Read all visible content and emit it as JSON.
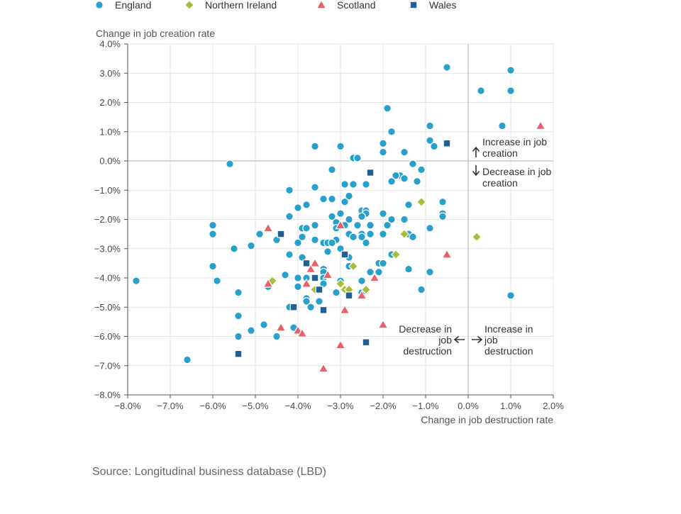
{
  "chart_data": {
    "type": "scatter",
    "xlabel": "Change in job destruction rate",
    "ylabel": "Change in job creation rate",
    "xlim": [
      -8,
      2
    ],
    "ylim": [
      -8,
      4
    ],
    "x_ticks": [
      -8,
      -7,
      -6,
      -5,
      -4,
      -3,
      -2,
      -1,
      0,
      1,
      2
    ],
    "y_ticks": [
      -8,
      -7,
      -6,
      -5,
      -4,
      -3,
      -2,
      -1,
      0,
      1,
      2,
      3,
      4
    ],
    "tick_format": "percent_1dp",
    "grid": true,
    "legend_position": "top",
    "annotations": {
      "increase_creation": [
        "Increase in job",
        "creation"
      ],
      "decrease_creation": [
        "Decrease in job",
        "creation"
      ],
      "decrease_destruction": [
        "Decrease in",
        "job",
        "destruction"
      ],
      "increase_destruction": [
        "Increase in",
        "job",
        "destruction"
      ]
    },
    "source": "Source: Longitudinal business database (LBD)",
    "series": [
      {
        "name": "England",
        "marker": "circle",
        "color": "#27a0cc",
        "points": [
          [
            -0.5,
            3.2
          ],
          [
            1.0,
            3.1
          ],
          [
            0.3,
            2.4
          ],
          [
            1.0,
            2.4
          ],
          [
            -1.9,
            1.8
          ],
          [
            0.8,
            1.2
          ],
          [
            -0.9,
            1.2
          ],
          [
            -1.8,
            1.0
          ],
          [
            -0.9,
            0.7
          ],
          [
            -0.8,
            0.5
          ],
          [
            -2.0,
            0.6
          ],
          [
            -3.6,
            0.5
          ],
          [
            -3.0,
            0.5
          ],
          [
            -1.5,
            0.3
          ],
          [
            -2.0,
            0.3
          ],
          [
            -2.7,
            0.1
          ],
          [
            -2.6,
            0.1
          ],
          [
            -5.6,
            -0.1
          ],
          [
            -1.3,
            -0.1
          ],
          [
            -3.2,
            -0.3
          ],
          [
            -1.1,
            -0.3
          ],
          [
            -1.6,
            -0.5
          ],
          [
            -1.7,
            -0.5
          ],
          [
            -1.5,
            -0.6
          ],
          [
            -1.8,
            -0.7
          ],
          [
            -1.2,
            -0.7
          ],
          [
            -2.9,
            -0.8
          ],
          [
            -2.7,
            -0.8
          ],
          [
            -2.4,
            -0.8
          ],
          [
            -3.6,
            -0.9
          ],
          [
            -4.2,
            -1.0
          ],
          [
            -2.8,
            -1.2
          ],
          [
            -3.4,
            -1.3
          ],
          [
            -3.2,
            -1.3
          ],
          [
            -2.9,
            -1.4
          ],
          [
            -3.8,
            -1.5
          ],
          [
            -1.4,
            -1.5
          ],
          [
            -4.0,
            -1.6
          ],
          [
            -0.6,
            -1.4
          ],
          [
            -2.5,
            -1.7
          ],
          [
            -2.4,
            -1.7
          ],
          [
            -2.4,
            -1.8
          ],
          [
            -2.0,
            -1.8
          ],
          [
            -3.0,
            -1.8
          ],
          [
            -0.6,
            -1.8
          ],
          [
            -4.2,
            -1.9
          ],
          [
            -3.2,
            -1.9
          ],
          [
            -2.5,
            -1.9
          ],
          [
            -0.6,
            -1.9
          ],
          [
            -2.8,
            -2.0
          ],
          [
            -1.8,
            -2.0
          ],
          [
            -1.5,
            -2.0
          ],
          [
            -3.1,
            -2.1
          ],
          [
            -2.9,
            -2.2
          ],
          [
            -6.0,
            -2.2
          ],
          [
            -3.6,
            -2.2
          ],
          [
            -2.6,
            -2.2
          ],
          [
            -2.3,
            -2.2
          ],
          [
            -1.9,
            -2.2
          ],
          [
            -3.9,
            -2.3
          ],
          [
            -3.8,
            -2.3
          ],
          [
            -3.1,
            -2.3
          ],
          [
            -0.9,
            -2.3
          ],
          [
            -6.0,
            -2.5
          ],
          [
            -4.9,
            -2.5
          ],
          [
            -2.8,
            -2.5
          ],
          [
            -2.5,
            -2.5
          ],
          [
            -2.3,
            -2.5
          ],
          [
            -2.0,
            -2.5
          ],
          [
            -1.4,
            -2.5
          ],
          [
            -3.9,
            -2.6
          ],
          [
            -2.7,
            -2.6
          ],
          [
            -2.5,
            -2.6
          ],
          [
            -1.3,
            -2.6
          ],
          [
            -4.5,
            -2.7
          ],
          [
            -3.6,
            -2.7
          ],
          [
            -3.1,
            -2.7
          ],
          [
            -4.0,
            -2.8
          ],
          [
            -3.4,
            -2.8
          ],
          [
            -3.3,
            -2.8
          ],
          [
            -3.2,
            -2.8
          ],
          [
            -2.4,
            -2.8
          ],
          [
            -5.1,
            -2.9
          ],
          [
            -5.5,
            -3.0
          ],
          [
            -3.0,
            -3.0
          ],
          [
            -3.3,
            -3.1
          ],
          [
            -4.2,
            -3.2
          ],
          [
            -1.8,
            -3.2
          ],
          [
            -3.9,
            -3.3
          ],
          [
            -2.8,
            -3.3
          ],
          [
            -2.1,
            -3.5
          ],
          [
            -2.0,
            -3.5
          ],
          [
            -2.8,
            -3.6
          ],
          [
            -1.4,
            -3.7
          ],
          [
            -3.4,
            -3.7
          ],
          [
            -6.0,
            -3.6
          ],
          [
            -2.3,
            -3.8
          ],
          [
            -2.1,
            -3.8
          ],
          [
            -0.9,
            -3.8
          ],
          [
            -3.4,
            -3.8
          ],
          [
            -4.3,
            -3.9
          ],
          [
            -7.8,
            -4.1
          ],
          [
            -5.9,
            -4.1
          ],
          [
            -4.0,
            -4.0
          ],
          [
            -3.8,
            -4.0
          ],
          [
            -3.4,
            -4.0
          ],
          [
            -3.0,
            -4.1
          ],
          [
            -2.5,
            -4.1
          ],
          [
            -4.7,
            -4.3
          ],
          [
            -4.0,
            -4.3
          ],
          [
            -3.4,
            -4.2
          ],
          [
            -1.1,
            -4.4
          ],
          [
            -5.4,
            -4.5
          ],
          [
            -3.1,
            -4.5
          ],
          [
            -2.5,
            -4.5
          ],
          [
            1.0,
            -4.6
          ],
          [
            -3.8,
            -4.7
          ],
          [
            -3.8,
            -4.8
          ],
          [
            -3.5,
            -4.8
          ],
          [
            -4.2,
            -5.0
          ],
          [
            -3.7,
            -5.0
          ],
          [
            -5.4,
            -5.3
          ],
          [
            -4.8,
            -5.6
          ],
          [
            -4.1,
            -5.7
          ],
          [
            -5.1,
            -5.8
          ],
          [
            -5.4,
            -6.0
          ],
          [
            -4.5,
            -6.0
          ],
          [
            -6.6,
            -6.8
          ]
        ]
      },
      {
        "name": "Northern Ireland",
        "marker": "diamond",
        "color": "#a8bd3a",
        "points": [
          [
            -1.1,
            -1.4
          ],
          [
            -1.5,
            -2.5
          ],
          [
            0.2,
            -2.6
          ],
          [
            -1.7,
            -3.2
          ],
          [
            -2.7,
            -3.6
          ],
          [
            -4.6,
            -4.1
          ],
          [
            -3.0,
            -4.2
          ],
          [
            -3.6,
            -4.4
          ],
          [
            -2.9,
            -4.4
          ],
          [
            -2.8,
            -4.4
          ],
          [
            -2.4,
            -4.4
          ]
        ]
      },
      {
        "name": "Scotland",
        "marker": "triangle",
        "color": "#e8606a",
        "points": [
          [
            1.7,
            1.2
          ],
          [
            -4.7,
            -2.3
          ],
          [
            -3.0,
            -2.2
          ],
          [
            -0.5,
            -3.2
          ],
          [
            -3.6,
            -3.5
          ],
          [
            -3.7,
            -3.7
          ],
          [
            -3.3,
            -3.9
          ],
          [
            -2.2,
            -4.0
          ],
          [
            -4.7,
            -4.2
          ],
          [
            -3.8,
            -4.2
          ],
          [
            -2.5,
            -4.6
          ],
          [
            -2.9,
            -5.1
          ],
          [
            -2.0,
            -5.6
          ],
          [
            -4.4,
            -5.7
          ],
          [
            -4.0,
            -5.8
          ],
          [
            -3.9,
            -5.9
          ],
          [
            -3.0,
            -6.3
          ],
          [
            -3.4,
            -7.1
          ]
        ]
      },
      {
        "name": "Wales",
        "marker": "square",
        "color": "#206095",
        "points": [
          [
            -0.5,
            0.6
          ],
          [
            -2.3,
            -0.4
          ],
          [
            -4.4,
            -2.5
          ],
          [
            -2.9,
            -3.2
          ],
          [
            -3.8,
            -3.5
          ],
          [
            -3.6,
            -4.0
          ],
          [
            -3.5,
            -4.4
          ],
          [
            -2.8,
            -4.6
          ],
          [
            -4.1,
            -5.0
          ],
          [
            -3.4,
            -5.1
          ],
          [
            -2.4,
            -6.2
          ],
          [
            -5.4,
            -6.6
          ]
        ]
      }
    ]
  }
}
